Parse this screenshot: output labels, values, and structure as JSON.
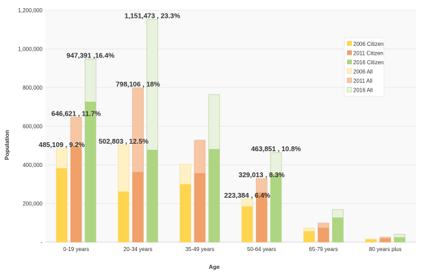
{
  "chart_data": {
    "type": "bar",
    "title": "",
    "xlabel": "Age",
    "ylabel": "Population",
    "ylim": [
      0,
      1200000
    ],
    "yticks": [
      0,
      200000,
      400000,
      600000,
      800000,
      1000000,
      1200000
    ],
    "ytick_labels": [
      "-",
      "200,000",
      "400,000",
      "600,000",
      "800,000",
      "1,000,000",
      "1,200,000"
    ],
    "categories": [
      "0-19 years",
      "20-34 years",
      "35-49 years",
      "50-64 years",
      "65-79 years",
      "80 years plus"
    ],
    "grid": true,
    "legend_position": "top-right",
    "series": [
      {
        "name": "2006 Citizen",
        "year": "2006",
        "kind": "citizen",
        "color": "#FFD54F",
        "values": [
          383000,
          262000,
          300000,
          185000,
          57000,
          14000
        ]
      },
      {
        "name": "2011 Citizen",
        "year": "2011",
        "kind": "citizen",
        "color": "#F0A068",
        "values": [
          490000,
          363000,
          357000,
          257000,
          75000,
          20000
        ]
      },
      {
        "name": "2016 Citizen",
        "year": "2016",
        "kind": "citizen",
        "color": "#AED581",
        "values": [
          727000,
          478000,
          482000,
          353000,
          128000,
          26000
        ]
      },
      {
        "name": "2006 All",
        "year": "2006",
        "kind": "all",
        "color": "#FFF1C4",
        "stroke": "#F2DC9C",
        "values": [
          485109,
          502803,
          403000,
          223384,
          73000,
          17000
        ]
      },
      {
        "name": "2011 All",
        "year": "2011",
        "kind": "all",
        "color": "#F7C6A4",
        "stroke": "#EDB48C",
        "values": [
          646621,
          798106,
          528000,
          329013,
          99000,
          26000
        ]
      },
      {
        "name": "2016 All",
        "year": "2016",
        "kind": "all",
        "color": "#E9F2DE",
        "stroke": "#B5D39C",
        "values": [
          947391,
          1151473,
          764000,
          463851,
          169000,
          41000
        ]
      }
    ],
    "annotations": [
      {
        "text": "485,109 , 9.2%",
        "category": "0-19 years",
        "year": "2006"
      },
      {
        "text": "646,621 , 11.7%",
        "category": "0-19 years",
        "year": "2011"
      },
      {
        "text": "947,391 ,16.4%",
        "category": "0-19 years",
        "year": "2016"
      },
      {
        "text": "502,803 , 12.5%",
        "category": "20-34 years",
        "year": "2006"
      },
      {
        "text": "798,106 , 18%",
        "category": "20-34 years",
        "year": "2011"
      },
      {
        "text": "1,151,473 , 23.3%",
        "category": "20-34 years",
        "year": "2016"
      },
      {
        "text": "223,384 , 6.4%",
        "category": "50-64 years",
        "year": "2006"
      },
      {
        "text": "329,013 , 8.3%",
        "category": "50-64 years",
        "year": "2011"
      },
      {
        "text": "463,851 , 10.8%",
        "category": "50-64 years",
        "year": "2016"
      }
    ]
  }
}
